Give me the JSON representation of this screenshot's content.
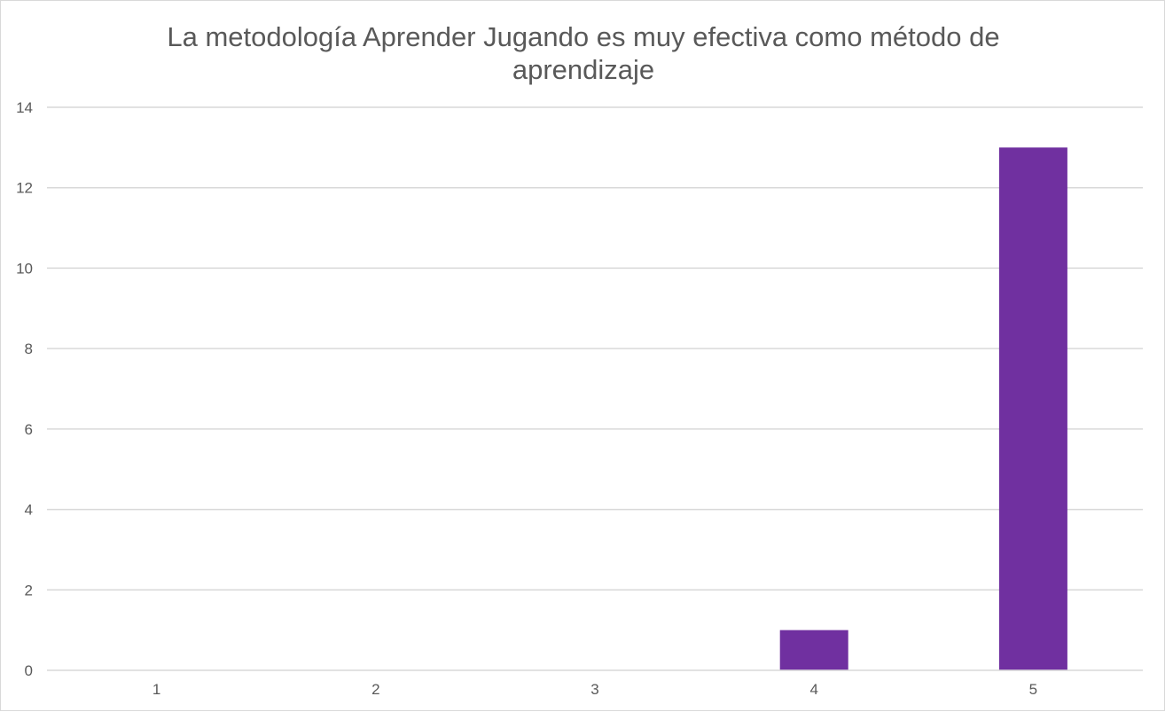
{
  "chart_data": {
    "type": "bar",
    "title_lines": [
      "La metodología Aprender Jugando es muy efectiva como método de",
      "aprendizaje"
    ],
    "categories": [
      "1",
      "2",
      "3",
      "4",
      "5"
    ],
    "values": [
      0,
      0,
      0,
      1,
      13
    ],
    "ylim": [
      0,
      14
    ],
    "yticks": [
      "0",
      "2",
      "4",
      "6",
      "8",
      "10",
      "12",
      "14"
    ],
    "xlabel": "",
    "ylabel": "",
    "grid": true,
    "legend": "none",
    "bar_color": "#7030A0"
  }
}
